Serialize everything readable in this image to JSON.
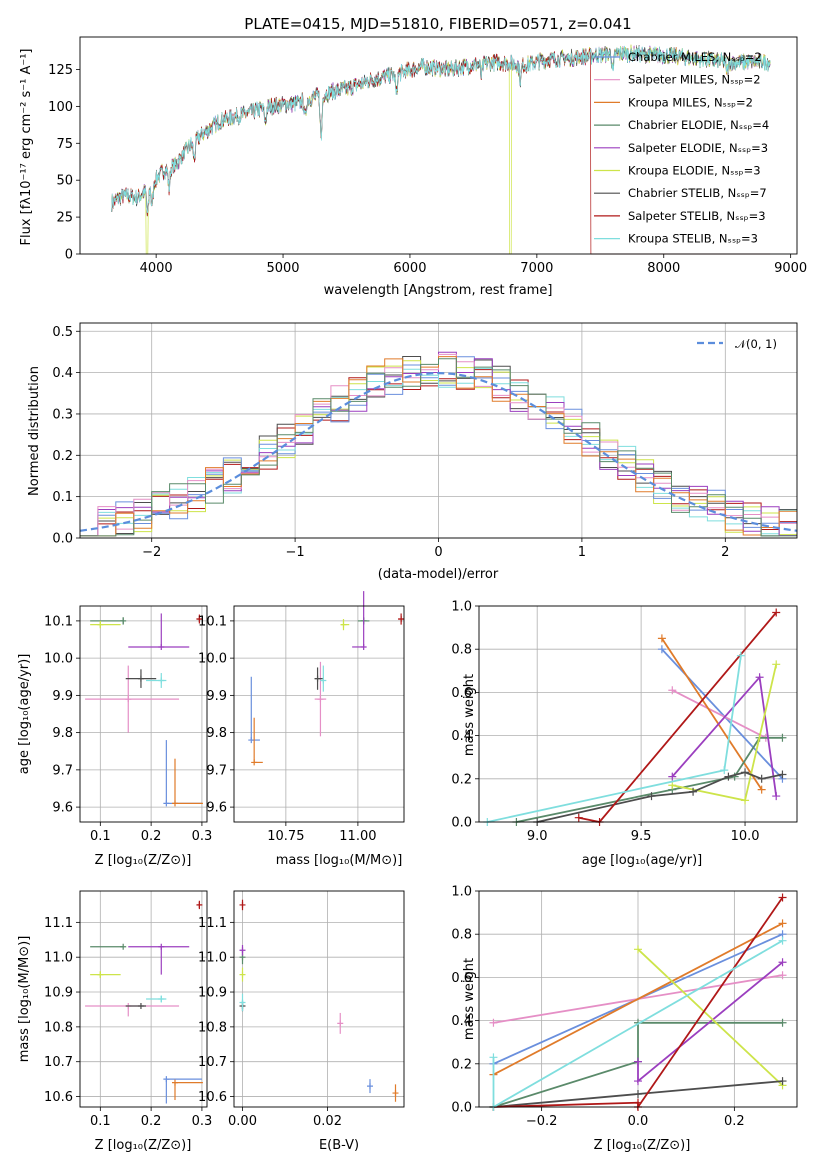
{
  "colors": {
    "chabMILES": "#6a8fdd",
    "salpMILES": "#e58fc6",
    "krouMILES": "#e07b2a",
    "chabELODIE": "#5a8a6a",
    "salpELODIE": "#9b3fbf",
    "krouELODIE": "#cde44a",
    "chabSTELIB": "#4d4d4d",
    "salpSTELIB": "#b01818",
    "krouSTELIB": "#7fdede",
    "normal": "#5b8ddc"
  },
  "spectrum": {
    "title": "PLATE=0415, MJD=51810, FIBERID=0571, z=0.041",
    "xlabel": "wavelength [Angstrom, rest frame]",
    "ylabel": "Flux [fλ10⁻¹⁷ erg cm⁻² s⁻¹ A⁻¹]",
    "xlim": [
      3400,
      9050
    ],
    "ylim": [
      0,
      147
    ],
    "xticks": [
      "4000",
      "5000",
      "6000",
      "7000",
      "8000",
      "9000"
    ],
    "yticks": [
      "0",
      "25",
      "50",
      "75",
      "100",
      "125"
    ],
    "legend": [
      "Chabrier MILES, Nₛₛₚ=2",
      "Salpeter MILES, Nₛₛₚ=2",
      "Kroupa MILES, Nₛₛₚ=2",
      "Chabrier ELODIE, Nₛₛₚ=4",
      "Salpeter ELODIE, Nₛₛₚ=3",
      "Kroupa ELODIE, Nₛₛₚ=3",
      "Chabrier STELIB, Nₛₛₚ=7",
      "Salpeter STELIB, Nₛₛₚ=3",
      "Kroupa STELIB, Nₛₛₚ=3"
    ],
    "continuum": [
      [
        3650,
        35
      ],
      [
        3750,
        40
      ],
      [
        3850,
        38
      ],
      [
        3950,
        45
      ],
      [
        4050,
        56
      ],
      [
        4150,
        60
      ],
      [
        4250,
        72
      ],
      [
        4350,
        80
      ],
      [
        4500,
        90
      ],
      [
        4700,
        95
      ],
      [
        4900,
        100
      ],
      [
        5100,
        102
      ],
      [
        5300,
        108
      ],
      [
        5500,
        112
      ],
      [
        5700,
        118
      ],
      [
        5900,
        122
      ],
      [
        6100,
        127
      ],
      [
        6300,
        125
      ],
      [
        6500,
        128
      ],
      [
        6700,
        130
      ],
      [
        6900,
        128
      ],
      [
        7100,
        132
      ],
      [
        7300,
        133
      ],
      [
        7500,
        135
      ],
      [
        7700,
        136
      ],
      [
        7900,
        135
      ],
      [
        8100,
        134
      ],
      [
        8300,
        132
      ],
      [
        8500,
        130
      ],
      [
        8800,
        130
      ]
    ]
  },
  "residuals": {
    "xlabel": "(data-model)/error",
    "ylabel": "Normed distribution",
    "xlim": [
      -2.5,
      2.5
    ],
    "ylim": [
      0,
      0.52
    ],
    "xticks": [
      "−2",
      "−1",
      "0",
      "1",
      "2"
    ],
    "yticks": [
      "0.0",
      "0.1",
      "0.2",
      "0.3",
      "0.4",
      "0.5"
    ],
    "legend": "𝒩(0, 1)"
  },
  "ageZ": {
    "xlabel": "Z [log₁₀(Z/Z⊙)]",
    "ylabel": "age  [log₁₀(age/yr)]",
    "xlim": [
      0.06,
      0.31
    ],
    "ylim": [
      9.56,
      10.14
    ],
    "xticks": [
      "0.1",
      "0.2",
      "0.3"
    ],
    "yticks": [
      "9.6",
      "9.7",
      "9.8",
      "9.9",
      "10.0",
      "10.1"
    ]
  },
  "ageMass": {
    "xlabel": "mass [log₁₀(M/M⊙)]",
    "xlim": [
      10.57,
      11.16
    ],
    "ylim": [
      9.56,
      10.14
    ],
    "xticks": [
      "10.75",
      "11.00"
    ],
    "yticks": [
      "9.6",
      "9.7",
      "9.8",
      "9.9",
      "10.0",
      "10.1"
    ]
  },
  "wAge": {
    "xlabel": "age  [log₁₀(age/yr)]",
    "ylabel": "mass weight",
    "xlim": [
      8.72,
      10.25
    ],
    "ylim": [
      0,
      1
    ],
    "xticks": [
      "9.0",
      "9.5",
      "10.0"
    ],
    "yticks": [
      "0.0",
      "0.2",
      "0.4",
      "0.6",
      "0.8",
      "1.0"
    ]
  },
  "massZ": {
    "xlabel": "Z [log₁₀(Z/Z⊙)]",
    "ylabel": "mass [log₁₀(M/M⊙)]",
    "xlim": [
      0.06,
      0.31
    ],
    "ylim": [
      10.57,
      11.19
    ],
    "xticks": [
      "0.1",
      "0.2",
      "0.3"
    ],
    "yticks": [
      "10.6",
      "10.7",
      "10.8",
      "10.9",
      "11.0",
      "11.1"
    ]
  },
  "massEBV": {
    "xlabel": "E(B-V)",
    "xlim": [
      -0.002,
      0.038
    ],
    "ylim": [
      10.57,
      11.19
    ],
    "xticks": [
      "0.00",
      "0.02"
    ],
    "yticks": [
      "10.6",
      "10.7",
      "10.8",
      "10.9",
      "11.0",
      "11.1"
    ]
  },
  "wZ": {
    "xlabel": "Z [log₁₀(Z/Z⊙)]",
    "ylabel": "mass weight",
    "xlim": [
      -0.33,
      0.33
    ],
    "ylim": [
      0,
      1
    ],
    "xticks": [
      "−0.2",
      "0.0",
      "0.2"
    ],
    "yticks": [
      "0.0",
      "0.2",
      "0.4",
      "0.6",
      "0.8",
      "1.0"
    ]
  },
  "chart_data": [
    {
      "type": "line",
      "title": "PLATE=0415, MJD=51810, FIBERID=0571, z=0.041",
      "xlabel": "wavelength [Angstrom, rest frame]",
      "ylabel": "Flux",
      "x_range": [
        3650,
        8800
      ],
      "ylim": [
        0,
        147
      ],
      "series_names": [
        "Chabrier MILES",
        "Salpeter MILES",
        "Kroupa MILES",
        "Chabrier ELODIE",
        "Salpeter ELODIE",
        "Kroupa ELODIE",
        "Chabrier STELIB",
        "Salpeter STELIB",
        "Kroupa STELIB"
      ]
    },
    {
      "type": "bar",
      "xlabel": "(data-model)/error",
      "ylabel": "Normed distribution",
      "reference_curve": "N(0,1)"
    },
    {
      "type": "scatter",
      "panel": "age vs Z",
      "points": [
        {
          "series": "Chabrier MILES",
          "x": 0.23,
          "y": 9.61
        },
        {
          "series": "Salpeter MILES",
          "x": 0.155,
          "y": 9.89
        },
        {
          "series": "Kroupa MILES",
          "x": 0.247,
          "y": 9.61
        },
        {
          "series": "Chabrier ELODIE",
          "x": 0.145,
          "y": 10.1
        },
        {
          "series": "Salpeter ELODIE",
          "x": 0.22,
          "y": 10.03
        },
        {
          "series": "Kroupa ELODIE",
          "x": 0.1,
          "y": 10.09
        },
        {
          "series": "Chabrier STELIB",
          "x": 0.18,
          "y": 9.945
        },
        {
          "series": "Salpeter STELIB",
          "x": 0.295,
          "y": 10.105
        },
        {
          "series": "Kroupa STELIB",
          "x": 0.22,
          "y": 9.94
        }
      ]
    },
    {
      "type": "line",
      "panel": "mass weight vs age",
      "series": [
        {
          "name": "Chabrier MILES",
          "x": [
            9.6,
            10.18
          ],
          "y": [
            0.8,
            0.2
          ]
        },
        {
          "name": "Salpeter MILES",
          "x": [
            9.65,
            10.1
          ],
          "y": [
            0.61,
            0.39
          ]
        },
        {
          "name": "Kroupa MILES",
          "x": [
            9.6,
            10.08
          ],
          "y": [
            0.85,
            0.15
          ]
        },
        {
          "name": "Chabrier ELODIE",
          "x": [
            8.9,
            9.65,
            9.95,
            10.07,
            10.18
          ],
          "y": [
            0,
            0.15,
            0.21,
            0.39,
            0.39
          ]
        },
        {
          "name": "Salpeter ELODIE",
          "x": [
            9.65,
            10.07,
            10.15
          ],
          "y": [
            0.21,
            0.67,
            0.12
          ]
        },
        {
          "name": "Kroupa ELODIE",
          "x": [
            9.65,
            10.0,
            10.15
          ],
          "y": [
            0.17,
            0.1,
            0.73
          ]
        },
        {
          "name": "Chabrier STELIB",
          "x": [
            9.0,
            9.55,
            9.75,
            9.92,
            10.0,
            10.08,
            10.18
          ],
          "y": [
            0,
            0.12,
            0.14,
            0.21,
            0.23,
            0.2,
            0.22
          ]
        },
        {
          "name": "Salpeter STELIB",
          "x": [
            9.2,
            9.3,
            10.15
          ],
          "y": [
            0.02,
            0,
            0.97
          ]
        },
        {
          "name": "Kroupa STELIB",
          "x": [
            8.76,
            9.9,
            9.98
          ],
          "y": [
            0,
            0.24,
            0.77
          ]
        }
      ]
    },
    {
      "type": "scatter",
      "panel": "age vs mass",
      "points": [
        {
          "series": "Chabrier MILES",
          "x": 10.63,
          "y": 9.78
        },
        {
          "series": "Salpeter MILES",
          "x": 10.87,
          "y": 9.89
        },
        {
          "series": "Kroupa MILES",
          "x": 10.64,
          "y": 9.72
        },
        {
          "series": "Chabrier ELODIE",
          "x": 11.02,
          "y": 10.1
        },
        {
          "series": "Salpeter ELODIE",
          "x": 11.02,
          "y": 10.03
        },
        {
          "series": "Kroupa ELODIE",
          "x": 10.95,
          "y": 10.09
        },
        {
          "series": "Chabrier STELIB",
          "x": 10.86,
          "y": 9.945
        },
        {
          "series": "Salpeter STELIB",
          "x": 11.15,
          "y": 10.105
        },
        {
          "series": "Kroupa STELIB",
          "x": 10.88,
          "y": 9.94
        }
      ]
    },
    {
      "type": "scatter",
      "panel": "mass vs Z",
      "points": [
        {
          "series": "Chabrier MILES",
          "x": 0.23,
          "y": 10.65
        },
        {
          "series": "Salpeter MILES",
          "x": 0.155,
          "y": 10.86
        },
        {
          "series": "Kroupa MILES",
          "x": 0.247,
          "y": 10.64
        },
        {
          "series": "Chabrier ELODIE",
          "x": 0.145,
          "y": 11.03
        },
        {
          "series": "Salpeter ELODIE",
          "x": 0.22,
          "y": 11.03
        },
        {
          "series": "Kroupa ELODIE",
          "x": 0.1,
          "y": 10.95
        },
        {
          "series": "Chabrier STELIB",
          "x": 0.18,
          "y": 10.86
        },
        {
          "series": "Salpeter STELIB",
          "x": 0.295,
          "y": 11.15
        },
        {
          "series": "Kroupa STELIB",
          "x": 0.22,
          "y": 10.88
        }
      ]
    },
    {
      "type": "scatter",
      "panel": "mass vs E(B-V)",
      "points": [
        {
          "series": "Chabrier MILES",
          "x": 0.03,
          "y": 10.63
        },
        {
          "series": "Salpeter MILES",
          "x": 0.023,
          "y": 10.81
        },
        {
          "series": "Kroupa MILES",
          "x": 0.036,
          "y": 10.61
        },
        {
          "series": "Chabrier ELODIE",
          "x": 0.0,
          "y": 11.0
        },
        {
          "series": "Salpeter ELODIE",
          "x": 0.0,
          "y": 11.02
        },
        {
          "series": "Kroupa ELODIE",
          "x": 0.0,
          "y": 10.95
        },
        {
          "series": "Chabrier STELIB",
          "x": 0.0,
          "y": 10.86
        },
        {
          "series": "Salpeter STELIB",
          "x": 0.0,
          "y": 11.15
        },
        {
          "series": "Kroupa STELIB",
          "x": 0.0,
          "y": 10.87
        }
      ]
    },
    {
      "type": "line",
      "panel": "mass weight vs Z",
      "series": [
        {
          "name": "Chabrier MILES",
          "x": [
            -0.3,
            0.3
          ],
          "y": [
            0.2,
            0.8
          ]
        },
        {
          "name": "Salpeter MILES",
          "x": [
            -0.3,
            0.3
          ],
          "y": [
            0.39,
            0.61
          ]
        },
        {
          "name": "Kroupa MILES",
          "x": [
            -0.3,
            0.3
          ],
          "y": [
            0.15,
            0.85
          ]
        },
        {
          "name": "Chabrier ELODIE",
          "x": [
            -0.3,
            0.0,
            0.0,
            0.3
          ],
          "y": [
            0.0,
            0.21,
            0.39,
            0.39
          ]
        },
        {
          "name": "Salpeter ELODIE",
          "x": [
            0.0,
            0.0,
            0.3
          ],
          "y": [
            0.21,
            0.12,
            0.67
          ]
        },
        {
          "name": "Kroupa ELODIE",
          "x": [
            0.0,
            0.3
          ],
          "y": [
            0.73,
            0.1
          ]
        },
        {
          "name": "Chabrier STELIB",
          "x": [
            -0.3,
            0.0,
            0.3
          ],
          "y": [
            0.0,
            0.06,
            0.12
          ]
        },
        {
          "name": "Salpeter STELIB",
          "x": [
            -0.3,
            0.0,
            0.0,
            0.3
          ],
          "y": [
            0.0,
            0.02,
            0.0,
            0.97
          ]
        },
        {
          "name": "Kroupa STELIB",
          "x": [
            -0.3,
            -0.3,
            0.3
          ],
          "y": [
            0.23,
            0.0,
            0.77
          ]
        }
      ]
    }
  ]
}
